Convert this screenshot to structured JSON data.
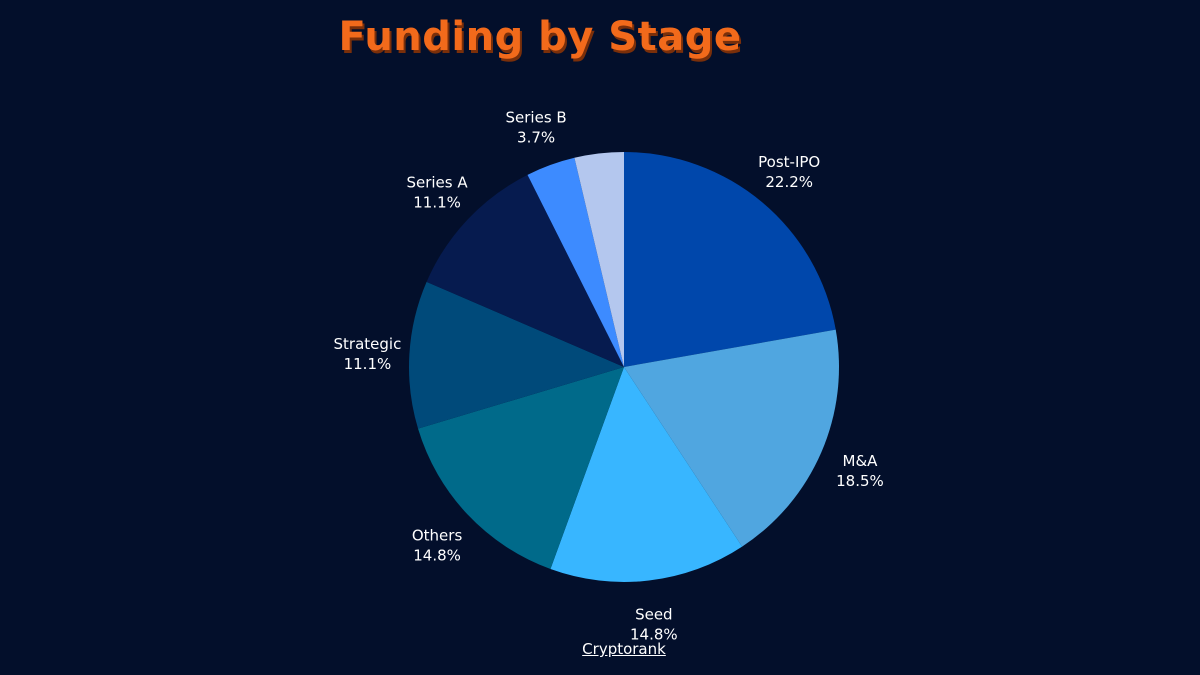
{
  "chart_data": {
    "type": "pie",
    "title": "Funding by Stage",
    "slices": [
      {
        "label": "Post-IPO",
        "value": 22.2,
        "value_label": "22.2%",
        "color": "#0047ab"
      },
      {
        "label": "M&A",
        "value": 18.5,
        "value_label": "18.5%",
        "color": "#50a6e0"
      },
      {
        "label": "Seed",
        "value": 14.8,
        "value_label": "14.8%",
        "color": "#38b6ff"
      },
      {
        "label": "Others",
        "value": 14.8,
        "value_label": "14.8%",
        "color": "#006a8a"
      },
      {
        "label": "Strategic",
        "value": 11.1,
        "value_label": "11.1%",
        "color": "#004a7a"
      },
      {
        "label": "Series A",
        "value": 11.1,
        "value_label": "11.1%",
        "color": "#061b4f"
      },
      {
        "label": "Series B",
        "value": 3.7,
        "value_label": "3.7%",
        "color": "#3d8bff"
      },
      {
        "label": "",
        "value": 3.7,
        "value_label": "",
        "color": "#b4c7ee"
      }
    ],
    "start": "12 o'clock",
    "direction": "clockwise",
    "legend": "none"
  },
  "source": "Cryptorank"
}
